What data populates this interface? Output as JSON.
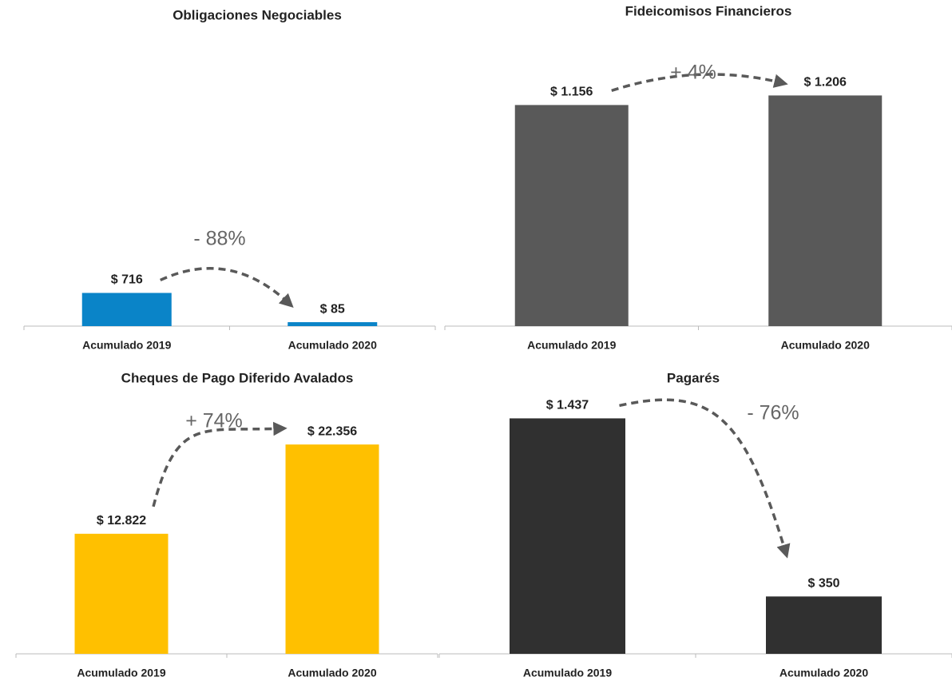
{
  "chart_data": [
    {
      "type": "bar",
      "title": "Obligaciones Negociables",
      "categories": [
        "Acumulado 2019",
        "Acumulado 2020"
      ],
      "values": [
        716,
        85
      ],
      "value_labels": [
        "$ 716",
        "$ 85"
      ],
      "annotation": "- 88%",
      "color": "#0a84c8",
      "ylim": [
        0,
        6000
      ]
    },
    {
      "type": "bar",
      "title": "Fideicomisos Financieros",
      "categories": [
        "Acumulado 2019",
        "Acumulado 2020"
      ],
      "values": [
        1156,
        1206
      ],
      "value_labels": [
        "$ 1.156",
        "$ 1.206"
      ],
      "annotation": "+ 4%",
      "color": "#595959",
      "ylim": [
        0,
        1400
      ]
    },
    {
      "type": "bar",
      "title": "Cheques de Pago Diferido Avalados",
      "categories": [
        "Acumulado 2019",
        "Acumulado 2020"
      ],
      "values": [
        12822,
        22356
      ],
      "value_labels": [
        "$ 12.822",
        "$ 22.356"
      ],
      "annotation": "+ 74%",
      "color": "#ffc000",
      "ylim": [
        0,
        28000
      ]
    },
    {
      "type": "bar",
      "title": "Pagarés",
      "categories": [
        "Acumulado 2019",
        "Acumulado 2020"
      ],
      "values": [
        1437,
        350
      ],
      "value_labels": [
        "$ 1.437",
        "$ 350"
      ],
      "annotation": "- 76%",
      "color": "#303030",
      "ylim": [
        0,
        1600
      ]
    }
  ]
}
